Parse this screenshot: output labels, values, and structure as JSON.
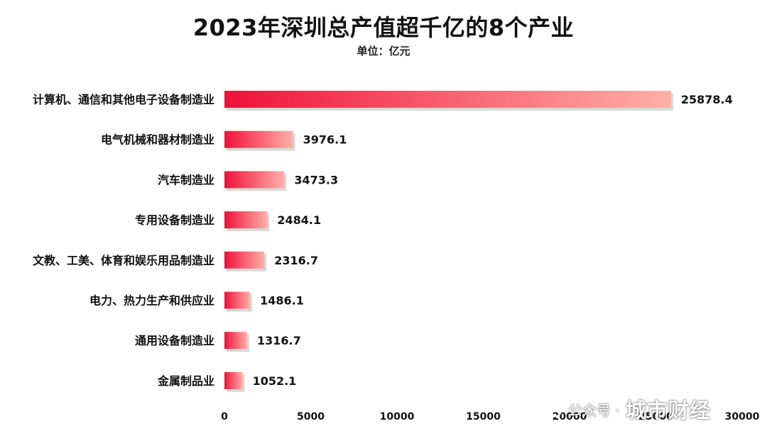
{
  "colors": {
    "bar_gradient_start": "#f0103a",
    "bar_gradient_end": "#ffb0a8",
    "bar_shadow": "#cfcfcf",
    "text": "#111111"
  },
  "watermark": {
    "icon": "wechat-icon",
    "label": "公众号 ·",
    "name": "城市财经"
  },
  "chart_data": {
    "type": "bar",
    "orientation": "horizontal",
    "title": "2023年深圳总产值超千亿的8个产业",
    "subtitle": "单位：亿元",
    "xlabel": "",
    "ylabel": "",
    "xlim": [
      0,
      30000
    ],
    "xticks": [
      0,
      5000,
      10000,
      15000,
      20000,
      25000,
      30000
    ],
    "grid": false,
    "legend": "none",
    "categories": [
      "计算机、通信和其他电子设备制造业",
      "电气机械和器材制造业",
      "汽车制造业",
      "专用设备制造业",
      "文教、工美、体育和娱乐用品制造业",
      "电力、热力生产和供应业",
      "通用设备制造业",
      "金属制品业"
    ],
    "values": [
      25878.4,
      3976.1,
      3473.3,
      2484.1,
      2316.7,
      1486.1,
      1316.7,
      1052.1
    ],
    "data_labels": [
      "25878.4",
      "3976.1",
      "3473.3",
      "2484.1",
      "2316.7",
      "1486.1",
      "1316.7",
      "1052.1"
    ]
  }
}
